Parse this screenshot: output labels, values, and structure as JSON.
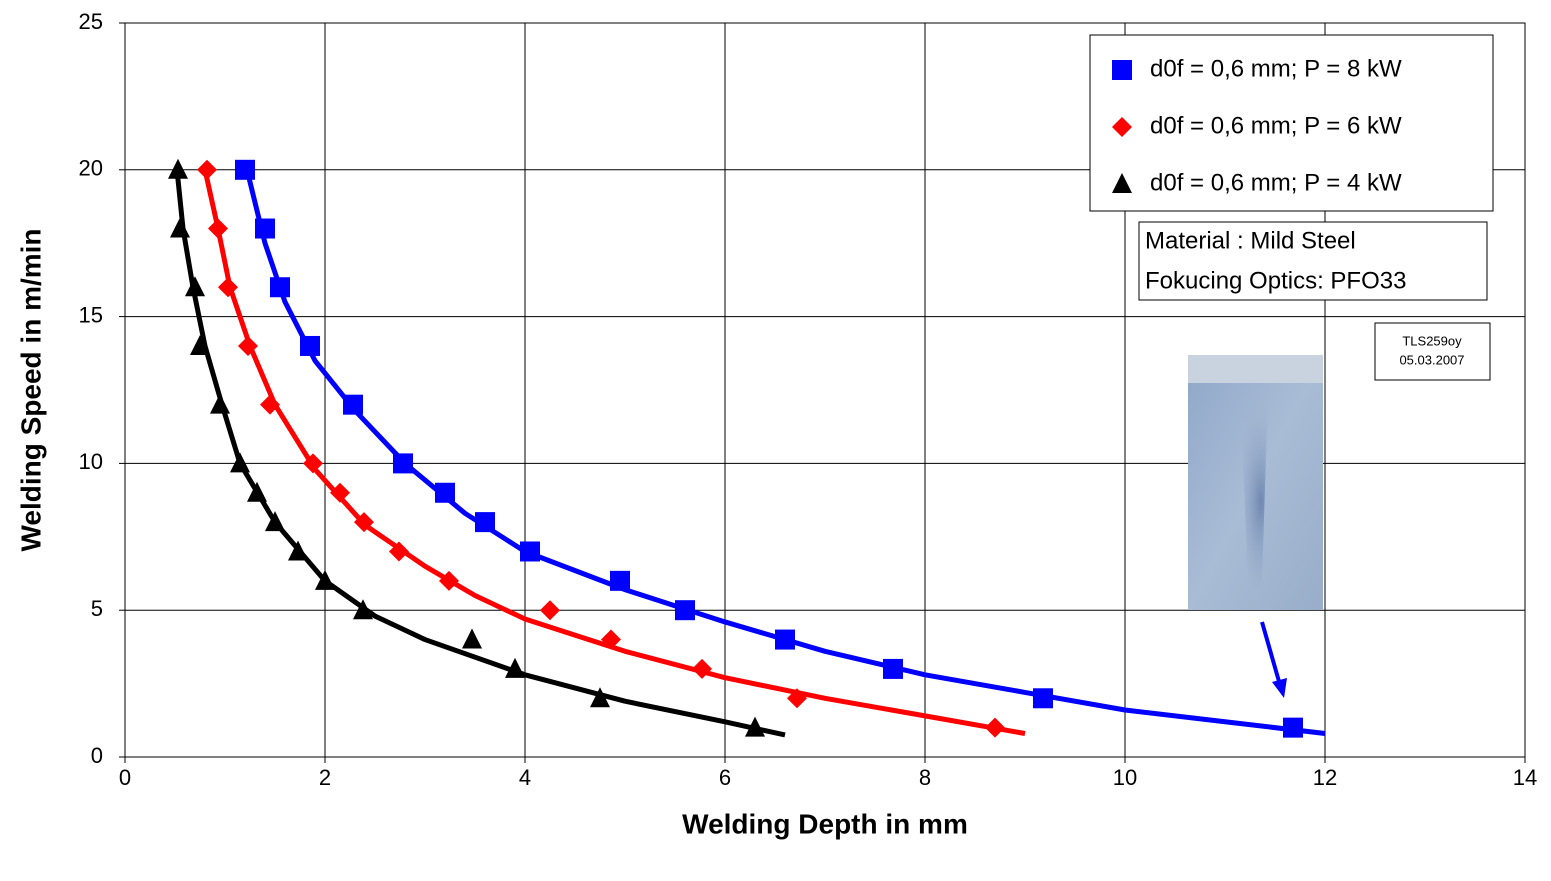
{
  "chart_data": {
    "type": "scatter",
    "xlabel": "Welding Depth in mm",
    "ylabel": "Welding Speed in m/min",
    "xlim": [
      0,
      14
    ],
    "xticks": [
      0,
      2,
      4,
      6,
      8,
      10,
      12,
      14
    ],
    "ylim": [
      0,
      25
    ],
    "yticks": [
      0,
      5,
      10,
      15,
      20,
      25
    ],
    "grid": true,
    "legend": "upper right",
    "series": [
      {
        "name": "d0f = 0,6 mm; P = 8 kW",
        "color": "#0000ff",
        "marker": "square",
        "x": [
          1.2,
          1.4,
          1.55,
          1.85,
          2.28,
          2.78,
          3.2,
          3.6,
          4.05,
          4.95,
          5.6,
          6.6,
          7.68,
          9.18,
          11.68
        ],
        "values": [
          20,
          18,
          16,
          14,
          12,
          10,
          9,
          8,
          7,
          6,
          5,
          4,
          3,
          2,
          1
        ],
        "fit_x": [
          1.22,
          1.4,
          1.6,
          1.9,
          2.3,
          2.8,
          3.4,
          4.0,
          5.0,
          6.0,
          7.0,
          8.0,
          9.0,
          10.0,
          11.0,
          12.0
        ],
        "fit_y": [
          20,
          17.5,
          15.5,
          13.5,
          11.8,
          10,
          8.3,
          7,
          5.7,
          4.6,
          3.6,
          2.8,
          2.2,
          1.6,
          1.2,
          0.8
        ]
      },
      {
        "name": "d0f = 0,6 mm; P = 6 kW",
        "color": "#ff0000",
        "marker": "diamond",
        "x": [
          0.82,
          0.93,
          1.03,
          1.23,
          1.45,
          1.88,
          2.15,
          2.39,
          2.74,
          3.24,
          4.25,
          4.86,
          5.77,
          6.72,
          8.7
        ],
        "values": [
          20,
          18,
          16,
          14,
          12,
          10,
          9,
          8,
          7,
          6,
          5,
          4,
          3,
          2,
          1
        ],
        "fit_x": [
          0.8,
          0.93,
          1.05,
          1.25,
          1.5,
          1.9,
          2.4,
          3.0,
          3.5,
          4.0,
          5.0,
          6.0,
          7.0,
          8.0,
          9.0
        ],
        "fit_y": [
          20,
          18,
          16,
          14,
          12,
          9.8,
          7.9,
          6.5,
          5.5,
          4.7,
          3.6,
          2.7,
          2.0,
          1.4,
          0.8
        ]
      },
      {
        "name": "d0f = 0,6 mm; P = 4 kW",
        "color": "#000000",
        "marker": "triangle",
        "x": [
          0.53,
          0.55,
          0.7,
          0.75,
          0.95,
          1.15,
          1.32,
          1.5,
          1.73,
          2.0,
          2.38,
          3.47,
          3.9,
          4.75,
          6.3
        ],
        "values": [
          20,
          18,
          16,
          14,
          12,
          10,
          9,
          8,
          7,
          6,
          5,
          4,
          3,
          2,
          1
        ],
        "fit_x": [
          0.52,
          0.58,
          0.68,
          0.8,
          0.97,
          1.15,
          1.5,
          2.0,
          2.5,
          3.0,
          4.0,
          5.0,
          6.0,
          6.6
        ],
        "fit_y": [
          20,
          18,
          16,
          14,
          12,
          10,
          8,
          6,
          4.8,
          4.0,
          2.8,
          1.9,
          1.2,
          0.75
        ]
      }
    ],
    "annotations": [
      "Material : Mild Steel",
      "Fokucing Optics: PFO33"
    ],
    "stamp": [
      "TLS259oy",
      "05.03.2007"
    ]
  }
}
